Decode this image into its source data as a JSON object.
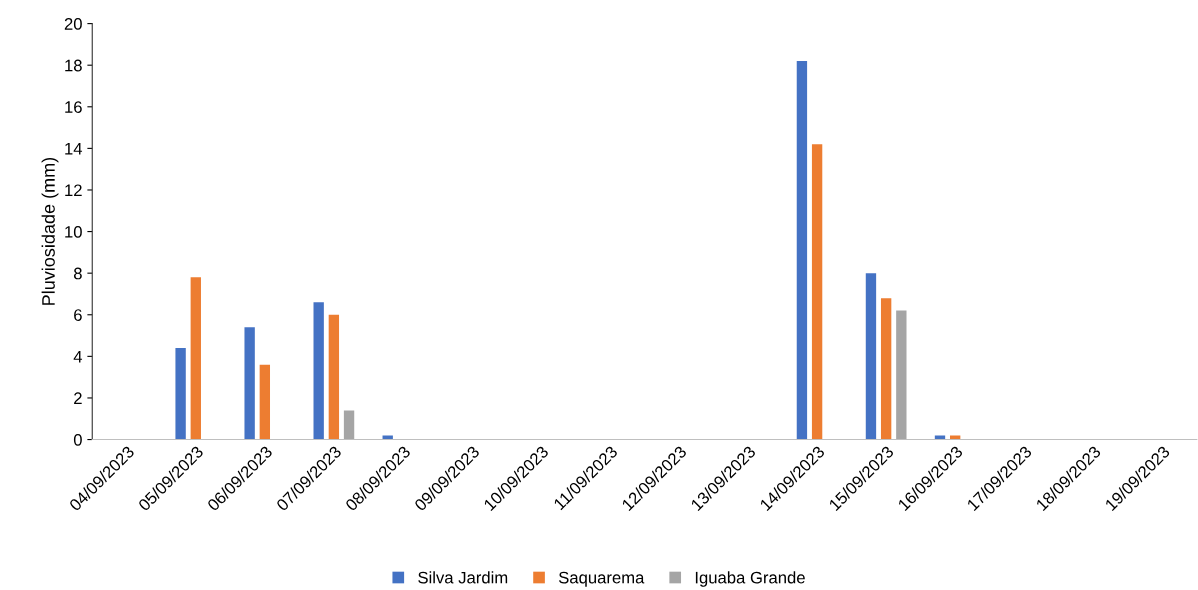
{
  "chart_data": {
    "type": "bar",
    "ylabel": "Pluviosidade (mm)",
    "categories": [
      "04/09/2023",
      "05/09/2023",
      "06/09/2023",
      "07/09/2023",
      "08/09/2023",
      "09/09/2023",
      "10/09/2023",
      "11/09/2023",
      "12/09/2023",
      "13/09/2023",
      "14/09/2023",
      "15/09/2023",
      "16/09/2023",
      "17/09/2023",
      "18/09/2023",
      "19/09/2023"
    ],
    "series": [
      {
        "name": "Silva Jardim",
        "color": "#4472c4",
        "values": [
          0,
          4.4,
          5.4,
          6.6,
          0.2,
          0,
          0,
          0,
          0,
          0,
          18.2,
          8.0,
          0.2,
          0,
          0,
          0
        ]
      },
      {
        "name": "Saquarema",
        "color": "#ed7d31",
        "values": [
          0,
          7.8,
          3.6,
          6.0,
          0,
          0,
          0,
          0,
          0,
          0,
          14.2,
          6.8,
          0.2,
          0,
          0,
          0
        ]
      },
      {
        "name": "Iguaba Grande",
        "color": "#a5a5a5",
        "values": [
          0,
          0,
          0,
          1.4,
          0,
          0,
          0,
          0,
          0,
          0,
          0,
          6.2,
          0,
          0,
          0,
          0
        ]
      }
    ],
    "ylim": [
      0,
      20
    ],
    "yticks": [
      0,
      2,
      4,
      6,
      8,
      10,
      12,
      14,
      16,
      18,
      20
    ],
    "grid": false,
    "legend": "bottom"
  }
}
